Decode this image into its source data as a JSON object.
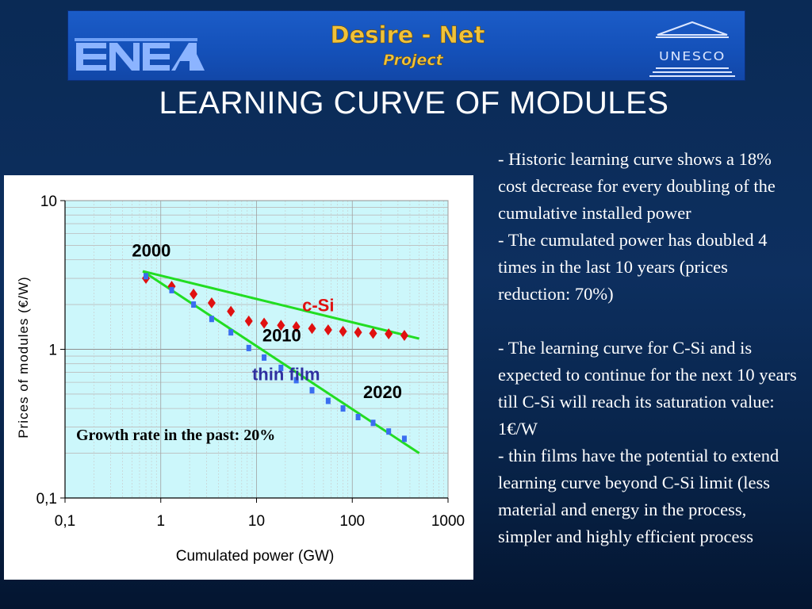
{
  "banner": {
    "left_logo": "ENEA",
    "title_line1": "Desire - Net",
    "title_line2": "Project",
    "right_logo": "UNESCO"
  },
  "slide": {
    "title": "LEARNING CURVE OF MODULES"
  },
  "notes": [
    "- Historic learning curve shows a 18% cost decrease for every doubling of the cumulative installed power",
    "- The cumulated power has doubled 4 times in the last 10 years (prices reduction: 70%)",
    "",
    "- The learning curve for C-Si and is expected to continue for the next 10 years till C-Si will reach its saturation value: 1€/W",
    "- thin films have the potential to extend learning curve beyond C-Si limit (less material and energy in the process, simpler and highly efficient process"
  ],
  "chart_data": {
    "type": "scatter",
    "xlabel": "Cumulated power (GW)",
    "ylabel": "Prices of modules (€/W)",
    "x_scale": "log",
    "y_scale": "log",
    "xlim": [
      0.1,
      1000
    ],
    "ylim": [
      0.1,
      10
    ],
    "x_ticks": [
      0.1,
      1,
      10,
      100,
      1000
    ],
    "x_tick_labels": [
      "0,1",
      "1",
      "10",
      "100",
      "1000"
    ],
    "y_ticks": [
      0.1,
      1,
      10
    ],
    "y_tick_labels": [
      "0,1",
      "1",
      "10"
    ],
    "grid": true,
    "plot_background": "#ccf7fb",
    "series": [
      {
        "name": "c-Si",
        "marker": "diamond",
        "color": "#e01010",
        "x": [
          0.7,
          1.3,
          2.2,
          3.4,
          5.4,
          8.3,
          12,
          18,
          26,
          38,
          56,
          80,
          115,
          165,
          240,
          350
        ],
        "y": [
          3.0,
          2.65,
          2.35,
          2.05,
          1.8,
          1.55,
          1.5,
          1.45,
          1.42,
          1.38,
          1.35,
          1.32,
          1.3,
          1.28,
          1.27,
          1.24
        ]
      },
      {
        "name": "thin film",
        "marker": "square",
        "color": "#3a6ef0",
        "x": [
          0.7,
          1.3,
          2.2,
          3.4,
          5.4,
          8.3,
          12,
          18,
          26,
          38,
          56,
          80,
          115,
          165,
          240,
          350
        ],
        "y": [
          3.1,
          2.5,
          2.0,
          1.6,
          1.3,
          1.02,
          0.88,
          0.75,
          0.62,
          0.53,
          0.45,
          0.4,
          0.35,
          0.32,
          0.28,
          0.25
        ]
      }
    ],
    "trend_lines": [
      {
        "color": "#22dd22",
        "x": [
          0.65,
          500
        ],
        "y": [
          3.35,
          1.18
        ]
      },
      {
        "color": "#22dd22",
        "x": [
          0.65,
          500
        ],
        "y": [
          3.35,
          0.2
        ]
      }
    ],
    "annotations": [
      {
        "text": "2000",
        "x": 0.5,
        "y": 4.2,
        "color": "#000000"
      },
      {
        "text": "2010",
        "x": 11.5,
        "y": 1.13,
        "color": "#000000"
      },
      {
        "text": "2020",
        "x": 130,
        "y": 0.47,
        "color": "#000000"
      },
      {
        "text": "c-Si",
        "x": 30,
        "y": 1.8,
        "color": "#e01010"
      },
      {
        "text": "thin film",
        "x": 9,
        "y": 0.62,
        "color": "#3030a0"
      }
    ],
    "note_box": "Growth rate in the past: 20%"
  }
}
